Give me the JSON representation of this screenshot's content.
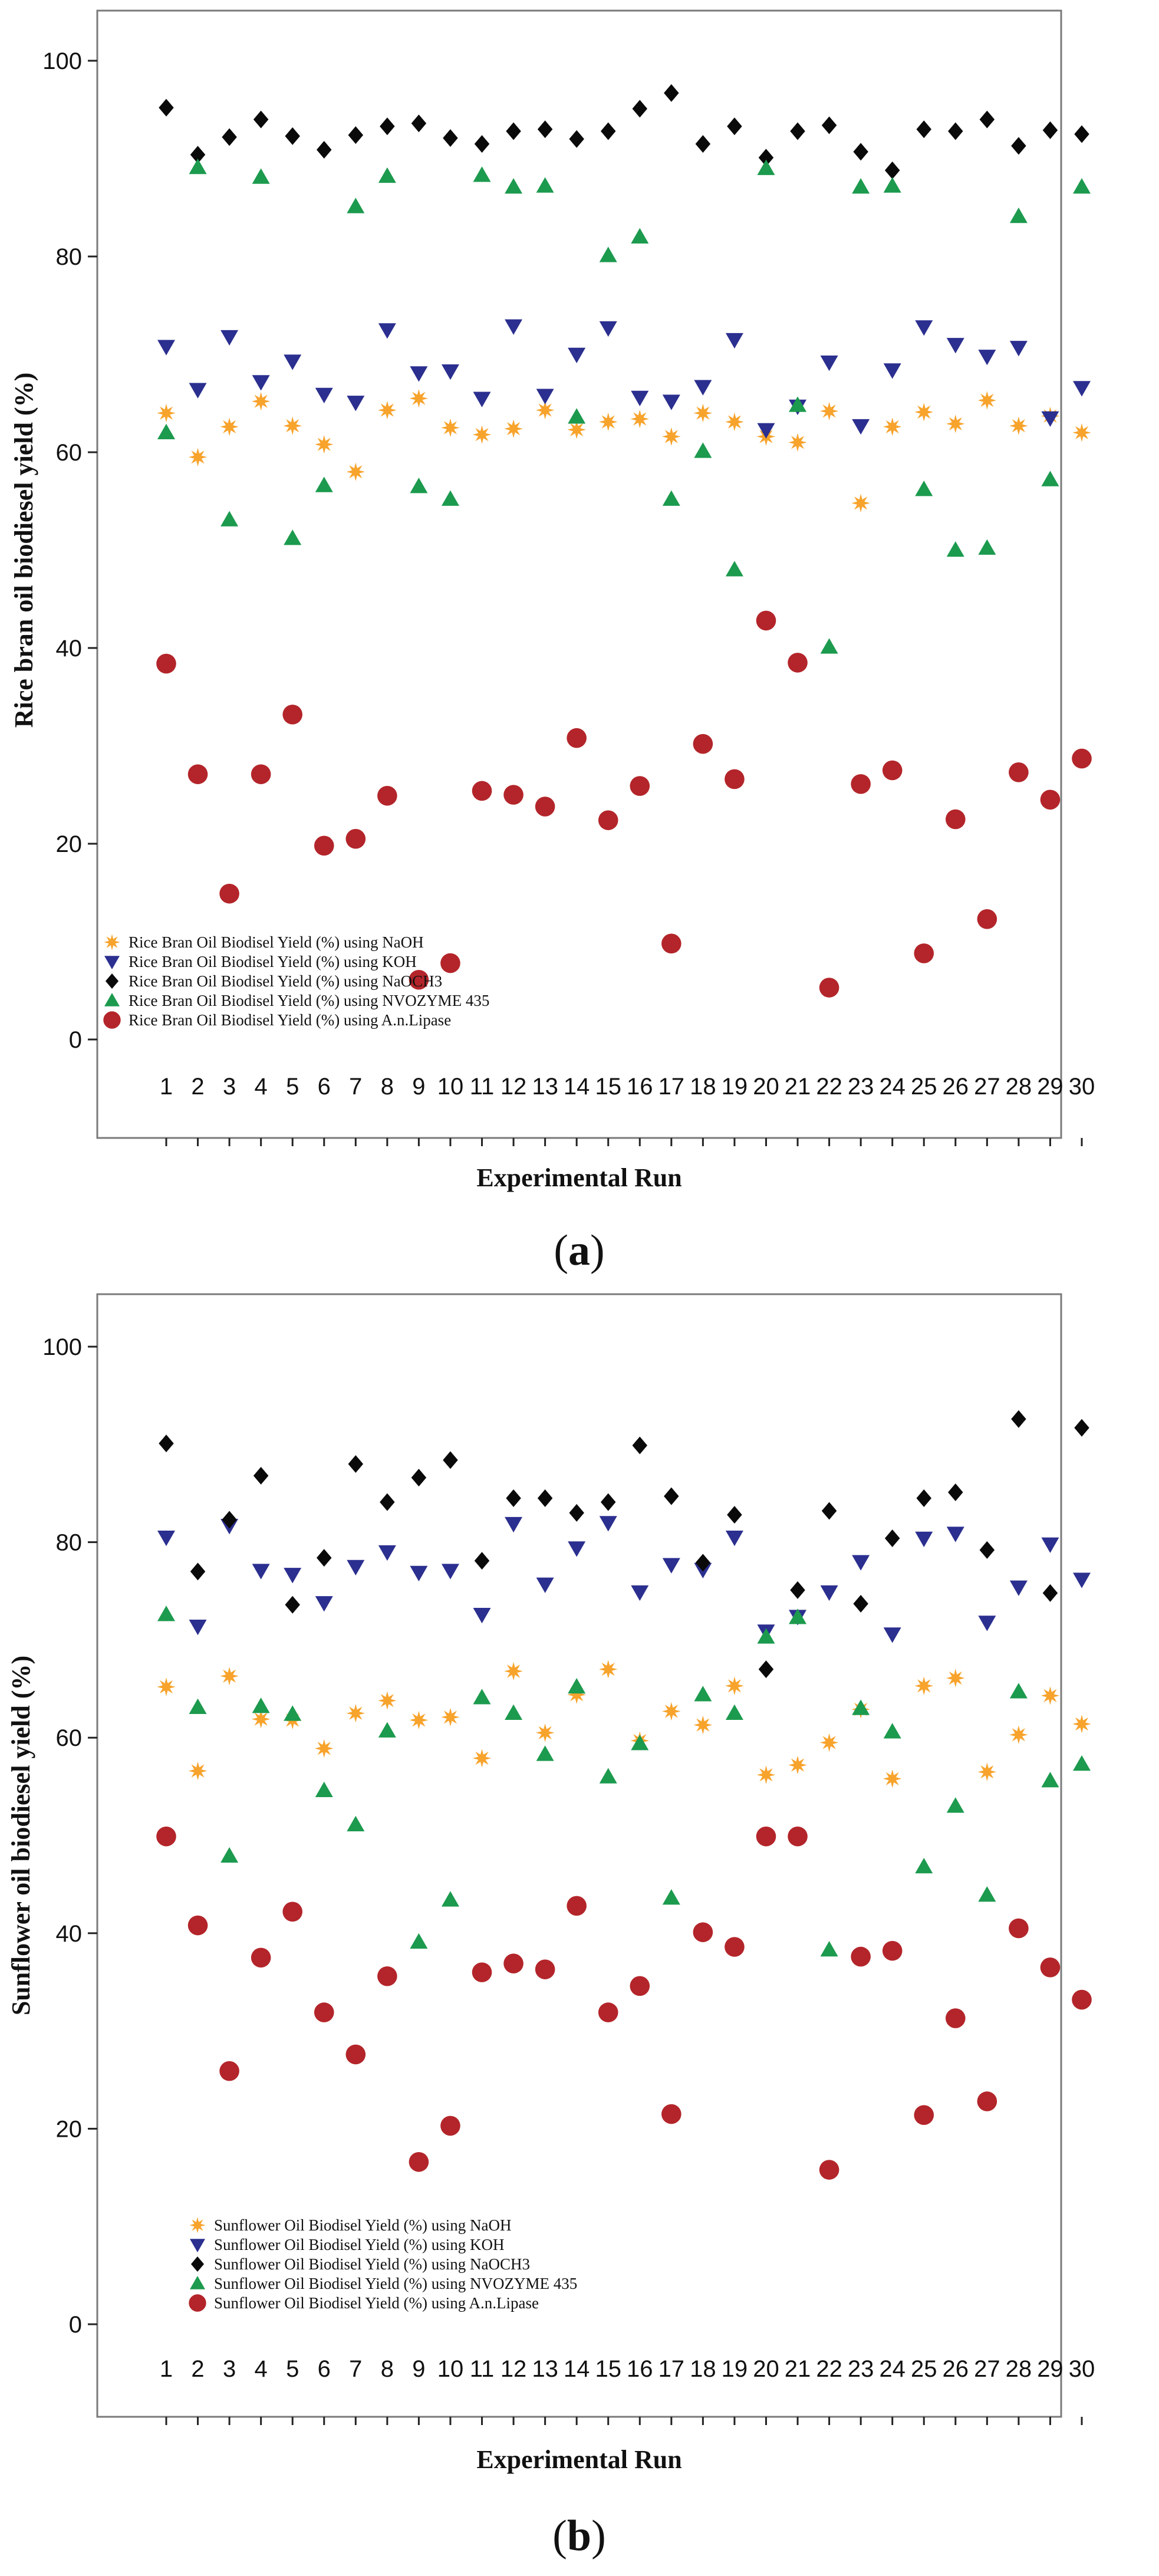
{
  "colors": {
    "NaOH": "#f7a32c",
    "KOH": "#2b2f8f",
    "NaOCH3": "#0a0a0a",
    "NVOZYME": "#1c9a4e",
    "Lipase": "#b3252a",
    "frame": "#7a7a7a"
  },
  "chart_data": [
    {
      "type": "scatter",
      "panel_label_open": "(",
      "panel_label_letter": "a",
      "panel_label_close": ")",
      "xlabel": "Experimental Run",
      "ylabel": "Rice bran oil biodiesel yield (%)",
      "x": [
        1,
        2,
        3,
        4,
        5,
        6,
        7,
        8,
        9,
        10,
        11,
        12,
        13,
        14,
        15,
        16,
        17,
        18,
        19,
        20,
        21,
        22,
        23,
        24,
        25,
        26,
        27,
        28,
        29,
        30
      ],
      "ylim": [
        -6,
        106
      ],
      "yticks": [
        0,
        20,
        40,
        60,
        80,
        100
      ],
      "legend_position": "bottom-left",
      "series": [
        {
          "key": "NaOH",
          "marker": "star",
          "name": "Rice Bran Oil Biodisel Yield (%) using NaOH",
          "values": [
            64.0,
            59.5,
            62.6,
            65.2,
            62.7,
            60.8,
            58.0,
            64.3,
            65.5,
            62.5,
            61.8,
            62.4,
            64.3,
            62.3,
            63.1,
            63.4,
            61.6,
            64.0,
            63.1,
            61.6,
            61.0,
            64.2,
            54.8,
            62.6,
            64.1,
            62.9,
            65.3,
            62.7,
            63.7,
            62.0
          ]
        },
        {
          "key": "KOH",
          "marker": "tri-down",
          "name": "Rice Bran Oil Biodisel Yield (%) using KOH",
          "values": [
            70.8,
            66.4,
            71.8,
            67.2,
            69.3,
            65.9,
            65.1,
            72.5,
            68.1,
            68.3,
            65.5,
            72.9,
            65.8,
            70.0,
            72.7,
            65.6,
            65.2,
            66.7,
            71.5,
            62.3,
            64.7,
            69.2,
            62.7,
            68.4,
            72.8,
            71.0,
            69.8,
            70.7,
            63.5,
            66.6
          ]
        },
        {
          "key": "NaOCH3",
          "marker": "diamond",
          "name": "Rice Bran Oil Biodisel Yield (%) using NaOCH3",
          "values": [
            95.2,
            90.4,
            92.2,
            94.0,
            92.3,
            90.9,
            92.4,
            93.3,
            93.6,
            92.1,
            91.5,
            92.8,
            93.0,
            92.0,
            92.8,
            95.1,
            96.7,
            91.5,
            93.3,
            90.1,
            92.8,
            93.4,
            90.7,
            88.8,
            93.0,
            92.8,
            94.0,
            91.3,
            92.9,
            92.5
          ]
        },
        {
          "key": "NVOZYME",
          "marker": "tri-up",
          "name": "Rice Bran Oil Biodisel Yield (%) using NVOZYME 435",
          "values": [
            62.0,
            89.1,
            53.1,
            88.1,
            51.2,
            56.6,
            85.1,
            88.2,
            56.5,
            55.2,
            88.3,
            87.1,
            87.2,
            63.6,
            80.1,
            82.0,
            55.2,
            60.1,
            48.0,
            89.0,
            64.8,
            40.1,
            87.1,
            87.2,
            56.2,
            50.0,
            50.2,
            84.1,
            57.2,
            87.1
          ]
        },
        {
          "key": "Lipase",
          "marker": "circle",
          "name": "Rice Bran Oil Biodisel Yield (%) using A.n.Lipase",
          "values": [
            38.4,
            27.1,
            14.9,
            27.1,
            33.2,
            19.8,
            20.5,
            24.9,
            6.1,
            7.8,
            25.4,
            25.0,
            23.8,
            30.8,
            22.4,
            25.9,
            9.8,
            30.2,
            26.6,
            42.8,
            38.5,
            5.3,
            26.1,
            27.5,
            8.8,
            22.5,
            12.3,
            27.3,
            24.5,
            28.7
          ]
        }
      ]
    },
    {
      "type": "scatter",
      "panel_label_open": "(",
      "panel_label_letter": "b",
      "panel_label_close": ")",
      "xlabel": "Experimental Run",
      "ylabel": "Sunflower oil biodiesel yield (%)",
      "x": [
        1,
        2,
        3,
        4,
        5,
        6,
        7,
        8,
        9,
        10,
        11,
        12,
        13,
        14,
        15,
        16,
        17,
        18,
        19,
        20,
        21,
        22,
        23,
        24,
        25,
        26,
        27,
        28,
        29,
        30
      ],
      "ylim": [
        -6,
        106
      ],
      "yticks": [
        0,
        20,
        40,
        60,
        80,
        100
      ],
      "legend_position": "bottom-center",
      "series": [
        {
          "key": "NaOH",
          "marker": "star",
          "name": "Sunflower Oil Biodisel Yield (%) using NaOH",
          "values": [
            65.2,
            56.6,
            66.3,
            61.9,
            61.8,
            58.9,
            62.5,
            63.8,
            61.8,
            62.1,
            57.9,
            66.8,
            60.5,
            64.4,
            67.0,
            59.7,
            62.7,
            61.3,
            65.3,
            56.2,
            57.2,
            59.5,
            62.9,
            55.8,
            65.3,
            66.1,
            56.5,
            60.3,
            64.3,
            61.4
          ]
        },
        {
          "key": "KOH",
          "marker": "tri-down",
          "name": "Sunflower Oil Biodisel Yield (%) using KOH",
          "values": [
            80.5,
            71.4,
            81.7,
            77.1,
            76.7,
            73.8,
            77.5,
            79.0,
            76.9,
            77.1,
            72.6,
            81.9,
            75.7,
            79.4,
            82.0,
            74.9,
            77.7,
            77.2,
            80.5,
            70.9,
            72.4,
            74.9,
            78.0,
            70.6,
            80.4,
            80.9,
            71.8,
            75.4,
            79.8,
            76.2
          ]
        },
        {
          "key": "NaOCH3",
          "marker": "diamond",
          "name": "Sunflower Oil Biodisel Yield (%) using NaOCH3",
          "values": [
            90.1,
            77.0,
            82.3,
            86.8,
            73.6,
            78.4,
            88.0,
            84.1,
            86.6,
            88.4,
            78.1,
            84.5,
            84.5,
            83.0,
            84.1,
            89.9,
            84.7,
            77.9,
            82.8,
            67.0,
            75.1,
            83.2,
            73.7,
            80.4,
            84.5,
            85.1,
            79.2,
            92.6,
            74.8,
            91.7
          ]
        },
        {
          "key": "NVOZYME",
          "marker": "tri-up",
          "name": "Sunflower Oil Biodisel Yield (%) using NVOZYME 435",
          "values": [
            72.6,
            63.1,
            47.9,
            63.2,
            62.4,
            54.6,
            51.1,
            60.7,
            39.1,
            43.4,
            64.1,
            62.5,
            58.3,
            65.2,
            56.0,
            59.4,
            43.6,
            64.4,
            62.5,
            70.3,
            72.3,
            38.3,
            63.0,
            60.6,
            46.8,
            53.0,
            43.9,
            64.7,
            55.6,
            57.3
          ]
        },
        {
          "key": "Lipase",
          "marker": "circle",
          "name": "Sunflower Oil Biodisel Yield (%) using A.n.Lipase",
          "values": [
            49.9,
            40.8,
            25.9,
            37.5,
            42.2,
            31.9,
            27.6,
            35.6,
            16.6,
            20.3,
            36.0,
            36.9,
            36.3,
            42.8,
            31.9,
            34.6,
            21.5,
            40.1,
            38.6,
            49.9,
            49.9,
            15.8,
            37.6,
            38.2,
            21.4,
            31.3,
            22.8,
            40.5,
            36.5,
            33.2
          ]
        }
      ]
    }
  ]
}
